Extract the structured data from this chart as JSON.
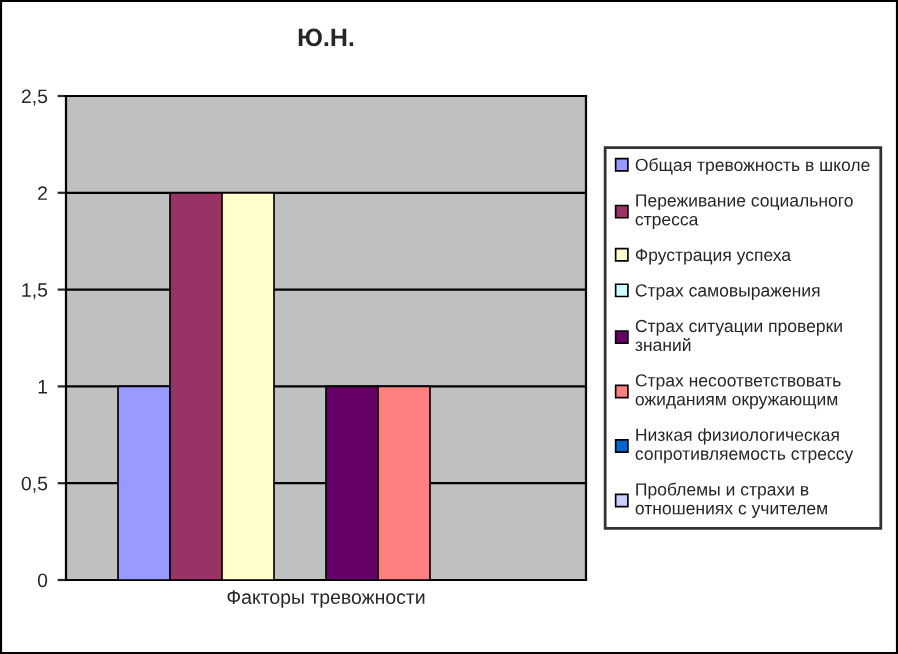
{
  "chart_data": {
    "type": "bar",
    "title": "Ю.Н.",
    "categories": [
      "Факторы тревожности"
    ],
    "series": [
      {
        "name": "Общая тревожность в школе",
        "color": "#9999ff",
        "values": [
          1
        ]
      },
      {
        "name": "Переживание социального стресса",
        "color": "#993366",
        "values": [
          2
        ]
      },
      {
        "name": "Фрустрация успеха",
        "color": "#ffffcc",
        "values": [
          2
        ]
      },
      {
        "name": "Страх самовыражения",
        "color": "#ccffff",
        "values": [
          0
        ]
      },
      {
        "name": "Страх ситуации проверки знаний",
        "color": "#660066",
        "values": [
          1
        ]
      },
      {
        "name": "Страх несоответствовать ожиданиям окружающим",
        "color": "#ff8080",
        "values": [
          1
        ]
      },
      {
        "name": "Низкая физиологическая сопротивляемость стрессу",
        "color": "#0066cc",
        "values": [
          0
        ]
      },
      {
        "name": "Проблемы и страхи в отношениях с учителем",
        "color": "#ccccff",
        "values": [
          0
        ]
      }
    ],
    "ylim": [
      0,
      2.5
    ],
    "yticks": [
      0,
      {
        "value": 0.5,
        "label": "0,5"
      },
      1,
      {
        "value": 1.5,
        "label": "1,5"
      },
      2,
      {
        "value": 2.5,
        "label": "2,5"
      }
    ],
    "grid": "y",
    "legend": "right"
  }
}
